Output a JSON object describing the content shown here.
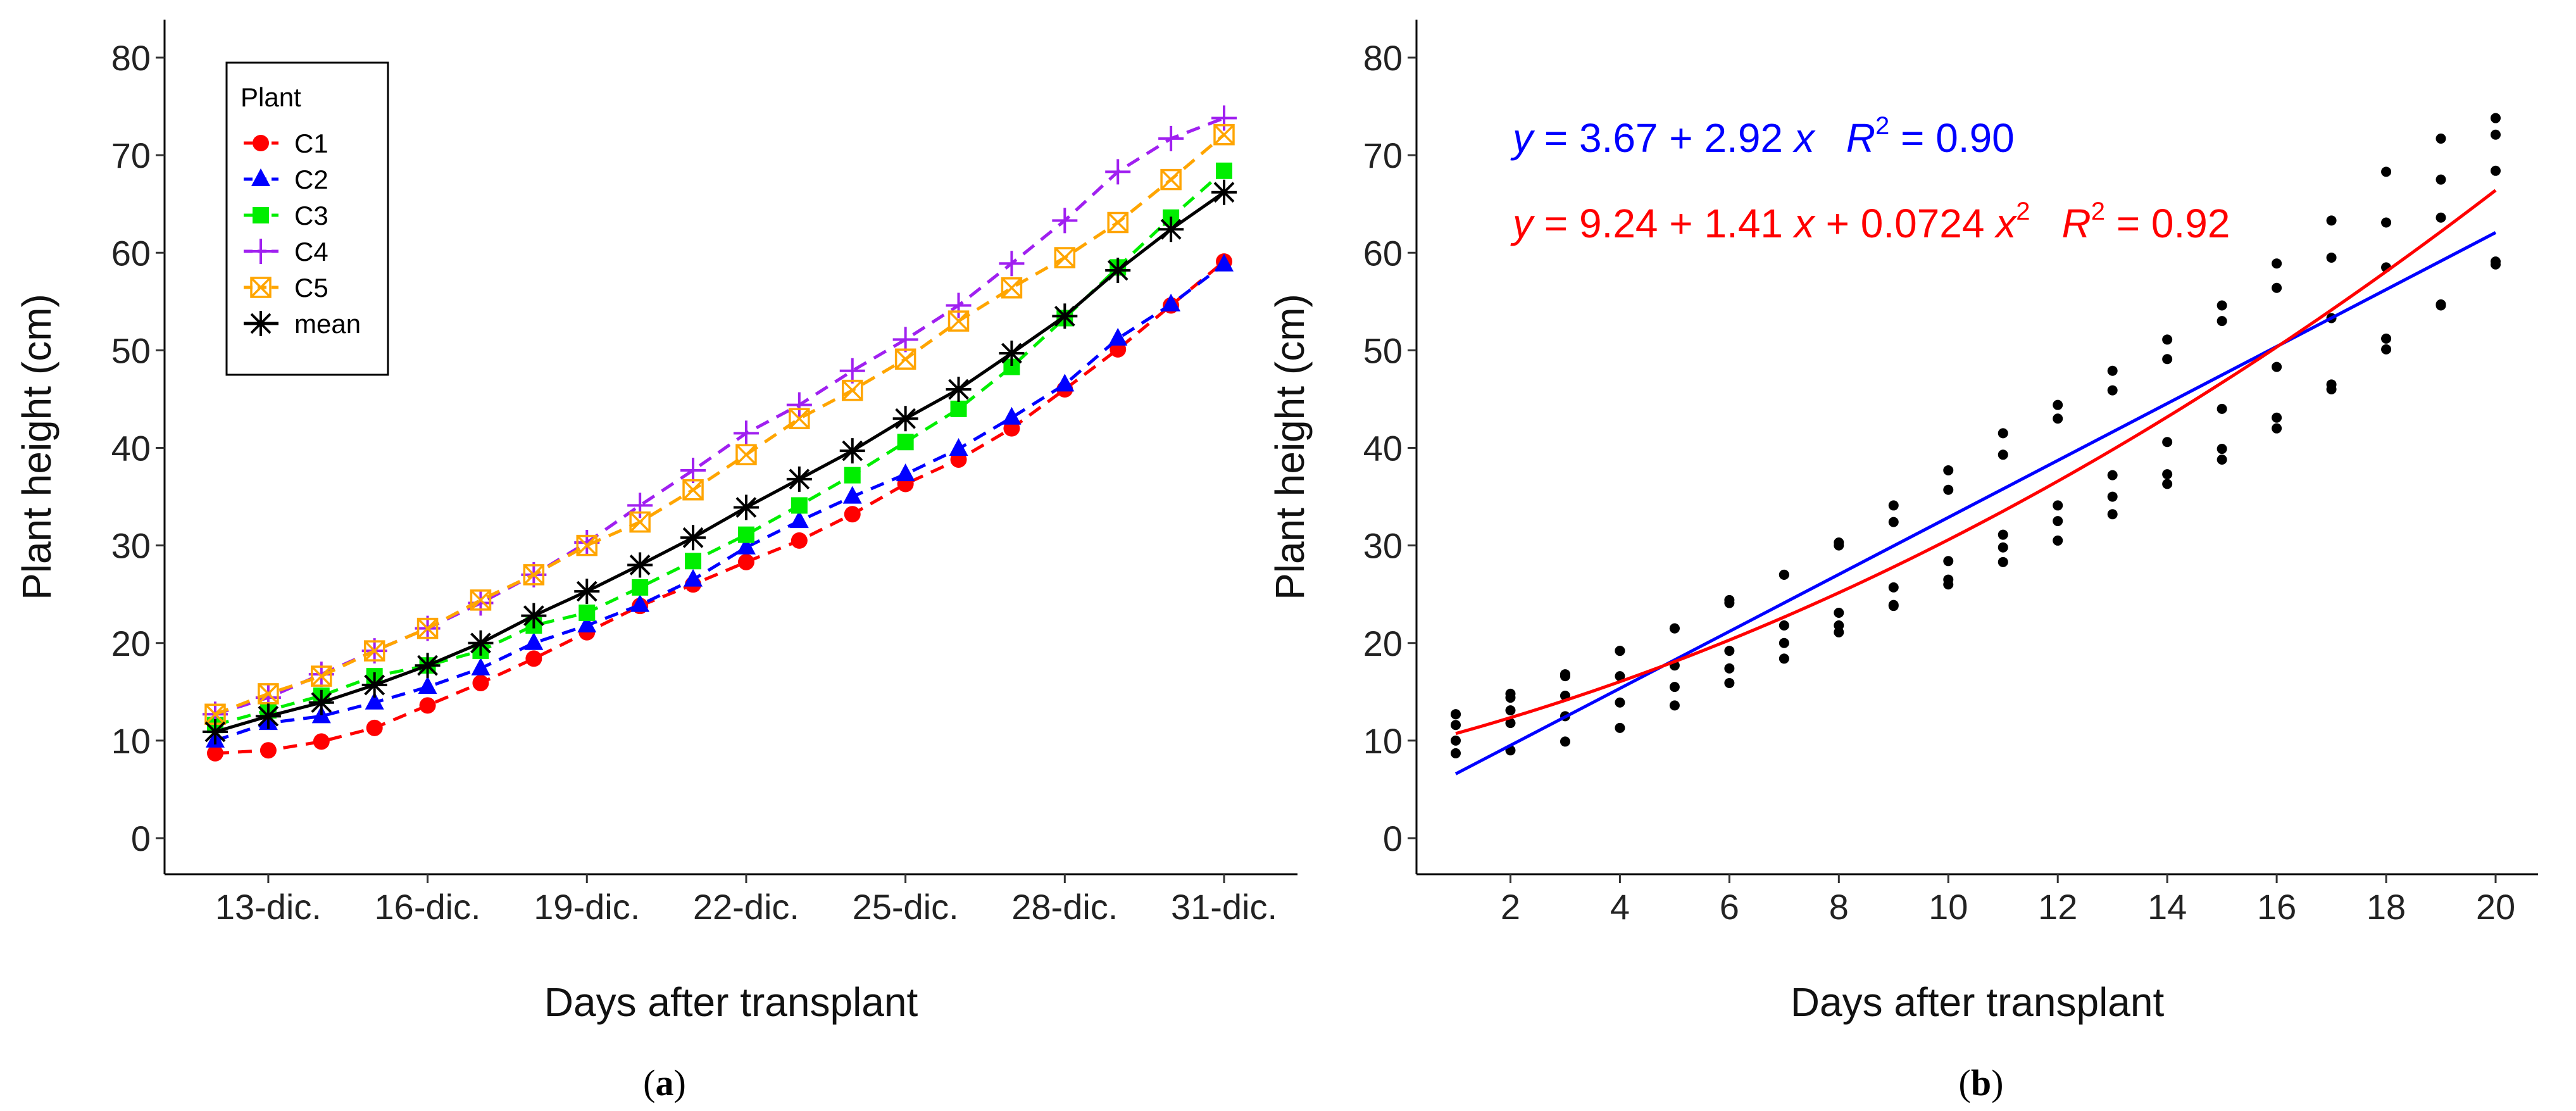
{
  "chart_data": [
    {
      "type": "line",
      "caption": "(a)",
      "xlabel": "Days after transplant",
      "ylabel": "Plant height (cm)",
      "ylim": [
        0,
        80
      ],
      "yticks": [
        0,
        10,
        20,
        30,
        40,
        50,
        60,
        70,
        80
      ],
      "x": [
        "12-dic.",
        "13-dic.",
        "14-dic.",
        "15-dic.",
        "16-dic.",
        "17-dic.",
        "18-dic.",
        "19-dic.",
        "20-dic.",
        "21-dic.",
        "22-dic.",
        "23-dic.",
        "24-dic.",
        "25-dic.",
        "26-dic.",
        "27-dic.",
        "28-dic.",
        "29-dic.",
        "30-dic.",
        "31-dic."
      ],
      "xtick_labels": [
        "13-dic.",
        "16-dic.",
        "19-dic.",
        "22-dic.",
        "25-dic.",
        "28-dic.",
        "31-dic."
      ],
      "legend": {
        "title": "Plant",
        "placement": "top-left"
      },
      "series": [
        {
          "name": "C1",
          "color": "#ff0000",
          "marker": "circle",
          "line": "dashed",
          "values": [
            8.7,
            9.0,
            9.9,
            11.3,
            13.6,
            15.9,
            18.4,
            21.1,
            23.8,
            26.0,
            28.3,
            30.5,
            33.2,
            36.3,
            38.8,
            42.0,
            46.0,
            50.1,
            54.6,
            59.1
          ]
        },
        {
          "name": "C2",
          "color": "#0000ff",
          "marker": "triangle",
          "line": "dashed",
          "values": [
            10.0,
            11.8,
            12.5,
            13.9,
            15.5,
            17.4,
            20.0,
            21.8,
            23.9,
            26.5,
            29.8,
            32.5,
            35.0,
            37.3,
            39.9,
            43.1,
            46.5,
            51.2,
            54.7,
            58.8
          ]
        },
        {
          "name": "C3",
          "color": "#00ee00",
          "marker": "square",
          "line": "dashed",
          "values": [
            11.6,
            13.1,
            14.6,
            16.6,
            17.7,
            19.2,
            21.8,
            23.1,
            25.7,
            28.4,
            31.1,
            34.1,
            37.2,
            40.6,
            44.0,
            48.3,
            53.3,
            58.5,
            63.6,
            68.4
          ]
        },
        {
          "name": "C4",
          "color": "#a020f0",
          "marker": "plus",
          "line": "dashed",
          "values": [
            12.7,
            14.4,
            16.8,
            19.2,
            21.5,
            24.1,
            27.0,
            30.3,
            34.1,
            37.7,
            41.5,
            44.4,
            47.9,
            51.1,
            54.6,
            58.9,
            63.3,
            68.3,
            71.7,
            73.8
          ]
        },
        {
          "name": "C5",
          "color": "#ffa500",
          "marker": "boxx",
          "line": "dashed",
          "values": [
            12.7,
            14.8,
            16.6,
            19.2,
            21.5,
            24.4,
            27.0,
            30.0,
            32.4,
            35.7,
            39.3,
            43.0,
            45.9,
            49.1,
            53.0,
            56.4,
            59.5,
            63.1,
            67.5,
            72.1
          ]
        },
        {
          "name": "mean",
          "color": "#000000",
          "marker": "asterisk",
          "line": "solid",
          "values": [
            10.9,
            12.5,
            13.9,
            15.7,
            17.7,
            20.0,
            22.8,
            25.3,
            28.0,
            30.8,
            33.9,
            36.8,
            39.7,
            43.0,
            46.0,
            49.7,
            53.5,
            58.2,
            62.4,
            66.2
          ]
        }
      ]
    },
    {
      "type": "scatter",
      "caption": "(b)",
      "xlabel": "Days after transplant",
      "ylabel": "Plant height (cm)",
      "ylim": [
        0,
        80
      ],
      "xlim": [
        1,
        20
      ],
      "yticks": [
        0,
        10,
        20,
        30,
        40,
        50,
        60,
        70,
        80
      ],
      "xticks": [
        2,
        4,
        6,
        8,
        10,
        12,
        14,
        16,
        18,
        20
      ],
      "point_color": "#000000",
      "points_by_day_from_series_a": true,
      "fits": [
        {
          "name": "linear",
          "color": "#0000ff",
          "coef": [
            3.67,
            2.92,
            0
          ],
          "eq": {
            "y": "y",
            "rhs": " = 3.67 + 2.92 ",
            "x": "x",
            "r": "R",
            "sup": "2",
            "r2": " = 0.90"
          }
        },
        {
          "name": "quadratic",
          "color": "#ff0000",
          "coef": [
            9.24,
            1.41,
            0.0724
          ],
          "eq": {
            "y": "y",
            "rhs": " = 9.24 + 1.41 ",
            "x": "x",
            "mid": " + 0.0724 ",
            "x2": "x",
            "sup1": "2",
            "r": "R",
            "sup": "2",
            "r2": " = 0.92"
          }
        }
      ]
    }
  ]
}
